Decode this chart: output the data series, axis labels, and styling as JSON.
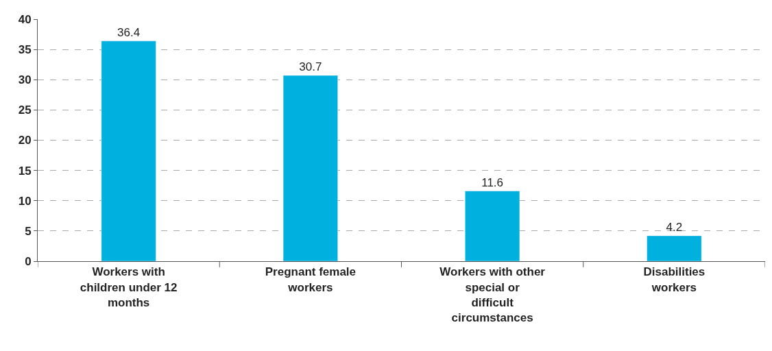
{
  "chart_data": {
    "type": "bar",
    "categories": [
      "Workers with children under 12 months",
      "Pregnant female workers",
      "Workers with other special or difficult circumstances",
      "Disabilities workers"
    ],
    "values": [
      36.4,
      30.7,
      11.6,
      4.2
    ],
    "color": "#00b0df",
    "ylim": [
      0,
      40
    ],
    "yticks": [
      0,
      5,
      10,
      15,
      20,
      25,
      30,
      35,
      40
    ],
    "grid": "y",
    "data_labels": true,
    "legend": false
  }
}
